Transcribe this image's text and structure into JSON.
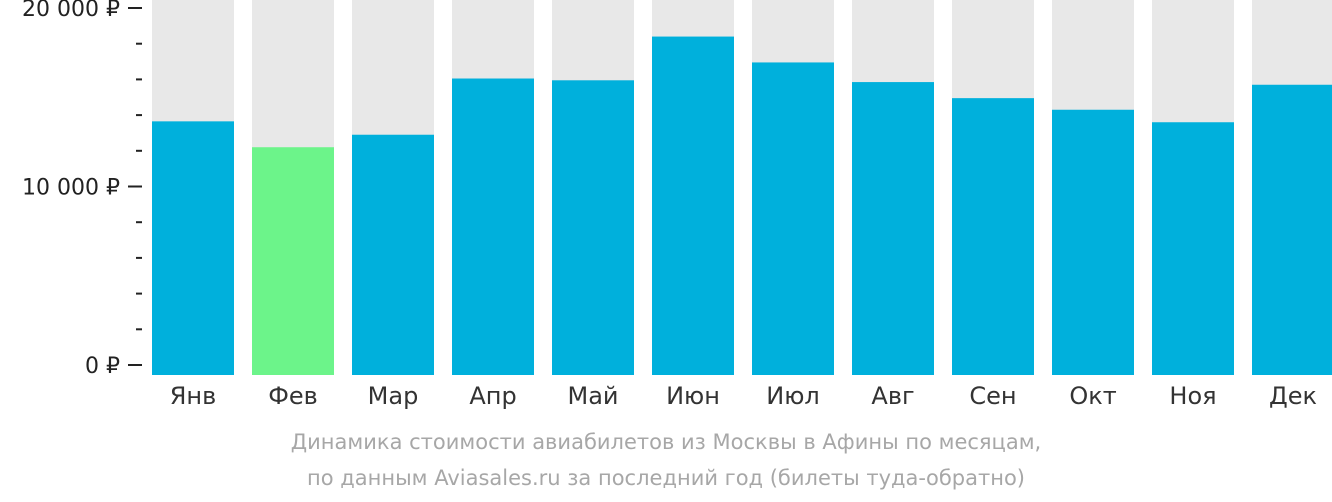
{
  "chart_data": {
    "type": "bar",
    "categories": [
      "Янв",
      "Фев",
      "Мар",
      "Апр",
      "Май",
      "Июн",
      "Июл",
      "Авг",
      "Сен",
      "Окт",
      "Ноя",
      "Дек"
    ],
    "values": [
      13650,
      12200,
      12900,
      16050,
      15950,
      18400,
      16950,
      15850,
      14950,
      14300,
      13600,
      15700
    ],
    "highlight_index": 1,
    "ylim": [
      0,
      20000
    ],
    "y_ticks": [
      {
        "value": 20000,
        "label": "20 000 ₽"
      },
      {
        "value": 10000,
        "label": "10 000 ₽"
      },
      {
        "value": 0,
        "label": "0 ₽"
      }
    ],
    "minor_tick_step": 2000,
    "grid": false,
    "colors": {
      "bar": "#00b0dc",
      "highlight": "#6cf48a",
      "track": "#e8e8e8",
      "axis_text": "#222222",
      "category_text": "#333333",
      "caption_text": "#a7a7a7"
    }
  },
  "caption": {
    "line1": "Динамика стоимости авиабилетов из Москвы в Афины по месяцам,",
    "line2": "по данным Aviasales.ru за последний год (билеты туда-обратно)"
  }
}
